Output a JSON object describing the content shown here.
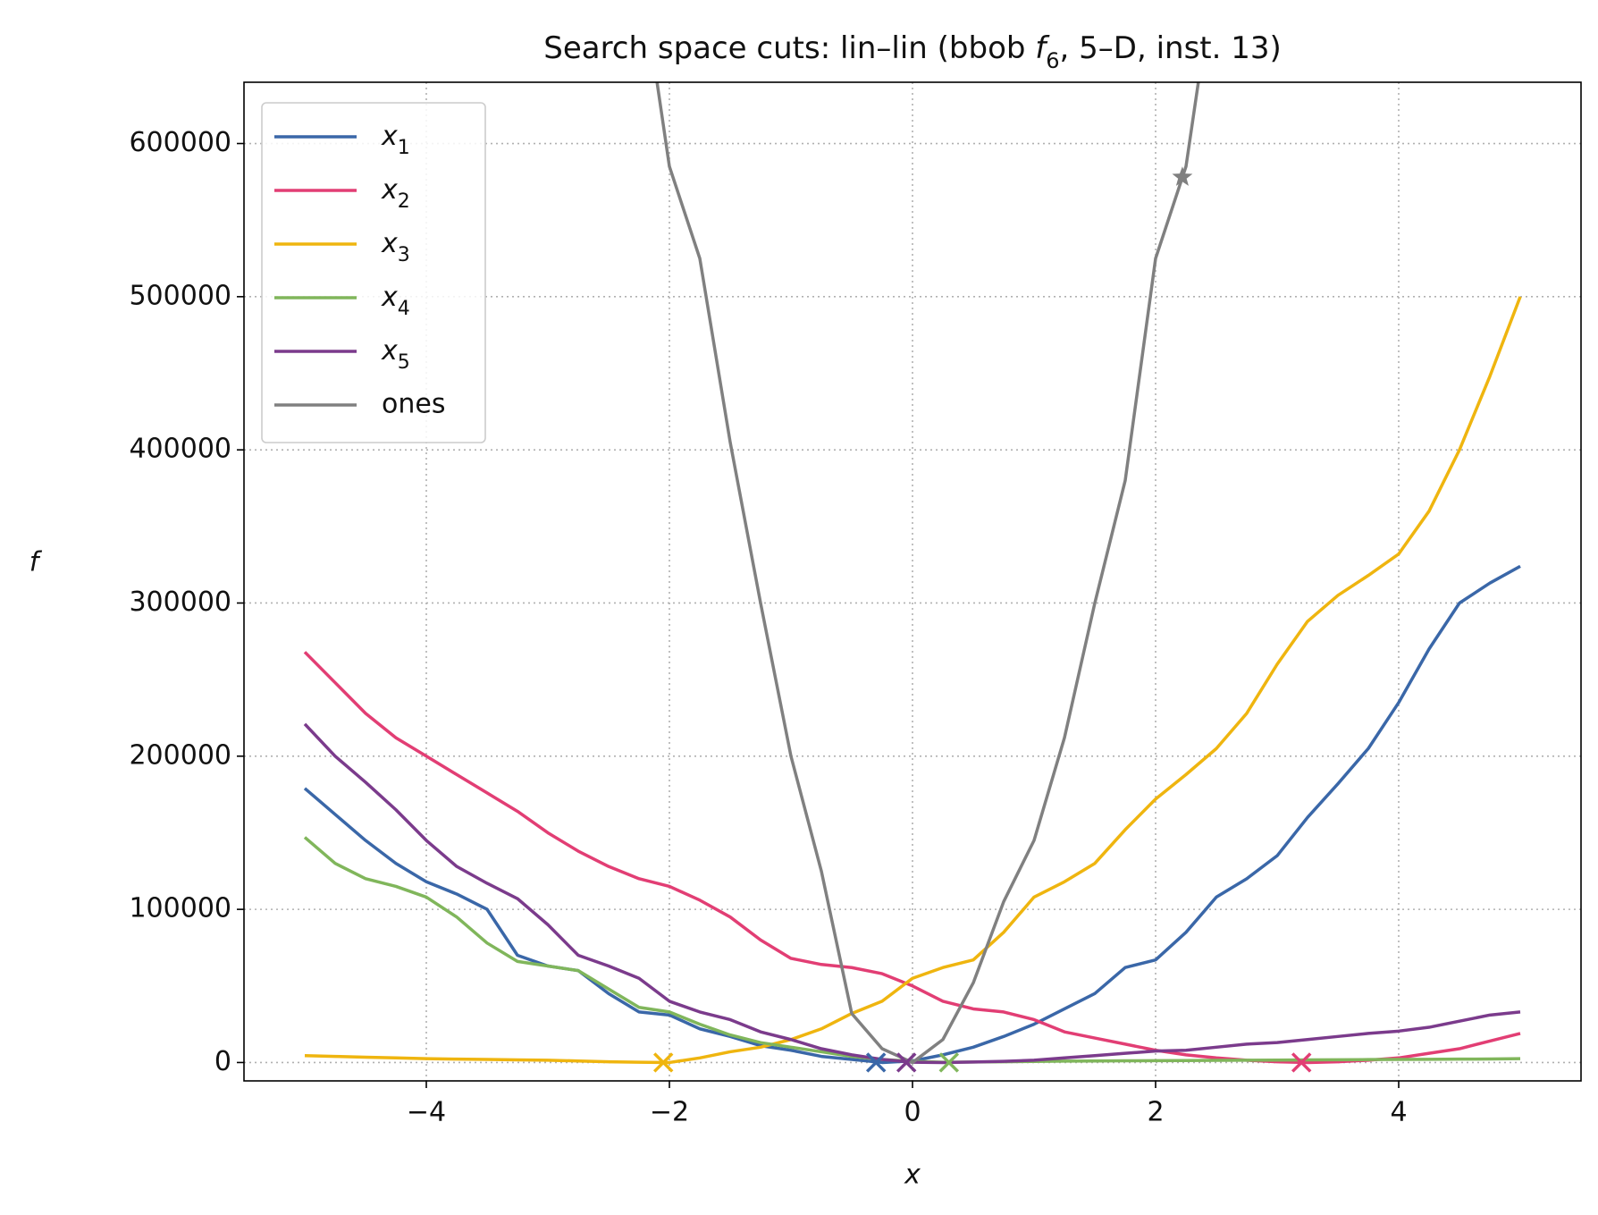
{
  "chart_data": {
    "type": "line",
    "title": [
      "Search space cuts: lin–lin (bbob ",
      "f",
      "6",
      ", 5–D, inst. 13)"
    ],
    "xlabel": "x",
    "ylabel": "f",
    "x": [
      -5,
      -4.75,
      -4.5,
      -4.25,
      -4,
      -3.75,
      -3.5,
      -3.25,
      -3,
      -2.75,
      -2.5,
      -2.25,
      -2,
      -1.75,
      -1.5,
      -1.25,
      -1,
      -0.75,
      -0.5,
      -0.25,
      0,
      0.25,
      0.5,
      0.75,
      1,
      1.25,
      1.5,
      1.75,
      2,
      2.25,
      2.5,
      2.75,
      3,
      3.25,
      3.5,
      3.75,
      4,
      4.25,
      4.5,
      4.75,
      5
    ],
    "xlim": [
      -5.5,
      5.5
    ],
    "xticks": [
      {
        "value": -4,
        "label": "−4"
      },
      {
        "value": -2,
        "label": "−2"
      },
      0,
      2,
      4
    ],
    "ylim": [
      -12000,
      640000
    ],
    "yticks": [
      0,
      100000,
      200000,
      300000,
      400000,
      500000,
      600000
    ],
    "grid": true,
    "legend": "upper left",
    "series": [
      {
        "name": "x1",
        "color": "#3a67a8",
        "values": [
          179000,
          162000,
          145000,
          130000,
          118000,
          110000,
          100000,
          70000,
          63000,
          60000,
          45000,
          33000,
          31000,
          22000,
          17000,
          11000,
          8000,
          4000,
          2000,
          0,
          1000,
          5000,
          10000,
          17000,
          25000,
          35000,
          45000,
          62000,
          67000,
          85000,
          108000,
          120000,
          135000,
          160000,
          182000,
          205000,
          235000,
          270000,
          300000,
          313000,
          324000
        ],
        "marker": {
          "x": -0.3,
          "y": 0
        }
      },
      {
        "name": "x2",
        "color": "#e23e74",
        "values": [
          268000,
          248000,
          228000,
          212000,
          200000,
          188000,
          176000,
          164000,
          150000,
          138000,
          128000,
          120000,
          115000,
          106000,
          95000,
          80000,
          68000,
          64000,
          62000,
          58000,
          50000,
          40000,
          35000,
          33000,
          28000,
          20000,
          16000,
          12000,
          8000,
          5000,
          3000,
          1500,
          500,
          0,
          500,
          1500,
          3000,
          6000,
          9000,
          14000,
          19000
        ],
        "marker": {
          "x": 3.2,
          "y": 0
        }
      },
      {
        "name": "x3",
        "color": "#efb50f",
        "values": [
          4500,
          4000,
          3500,
          3000,
          2500,
          2200,
          2000,
          1700,
          1500,
          1000,
          500,
          200,
          0,
          3000,
          7000,
          10000,
          15000,
          22000,
          32000,
          40000,
          55000,
          62000,
          67000,
          85000,
          108000,
          118000,
          130000,
          152000,
          172000,
          188000,
          205000,
          228000,
          260000,
          288000,
          305000,
          318000,
          332000,
          360000,
          400000,
          448000,
          500000
        ],
        "marker": {
          "x": -2.05,
          "y": 0
        }
      },
      {
        "name": "x4",
        "color": "#80b65b",
        "values": [
          147000,
          130000,
          120000,
          115000,
          108000,
          95000,
          78000,
          66000,
          63000,
          60000,
          48000,
          36000,
          33000,
          25000,
          18000,
          13000,
          10000,
          7000,
          4000,
          2000,
          800,
          200,
          300,
          500,
          700,
          900,
          1000,
          1100,
          1200,
          1300,
          1400,
          1500,
          1600,
          1700,
          1800,
          1900,
          2000,
          2100,
          2200,
          2300,
          2500
        ],
        "marker": {
          "x": 0.3,
          "y": 0
        }
      },
      {
        "name": "x5",
        "color": "#7b3b8c",
        "values": [
          221000,
          200000,
          183000,
          165000,
          145000,
          128000,
          117000,
          107000,
          90000,
          70000,
          63000,
          55000,
          40000,
          33000,
          28000,
          20000,
          15000,
          9000,
          5000,
          2000,
          200,
          0,
          300,
          800,
          1500,
          3000,
          4500,
          6000,
          7500,
          8000,
          10000,
          12000,
          13000,
          15000,
          17000,
          19000,
          20500,
          23000,
          27000,
          31000,
          33000
        ],
        "marker": {
          "x": -0.05,
          "y": 0
        }
      },
      {
        "name": "ones",
        "color": "#808080",
        "values": [
          null,
          null,
          null,
          null,
          null,
          null,
          null,
          null,
          null,
          null,
          null,
          720000,
          585000,
          525000,
          405000,
          300000,
          200000,
          125000,
          32000,
          9000,
          0,
          15000,
          52000,
          105000,
          145000,
          212000,
          300000,
          380000,
          525000,
          585000,
          720000,
          null,
          null,
          null,
          null,
          null,
          null,
          null,
          null,
          null,
          null
        ],
        "marker": {
          "x": 2.22,
          "y": 578000,
          "shape": "star"
        }
      }
    ]
  }
}
